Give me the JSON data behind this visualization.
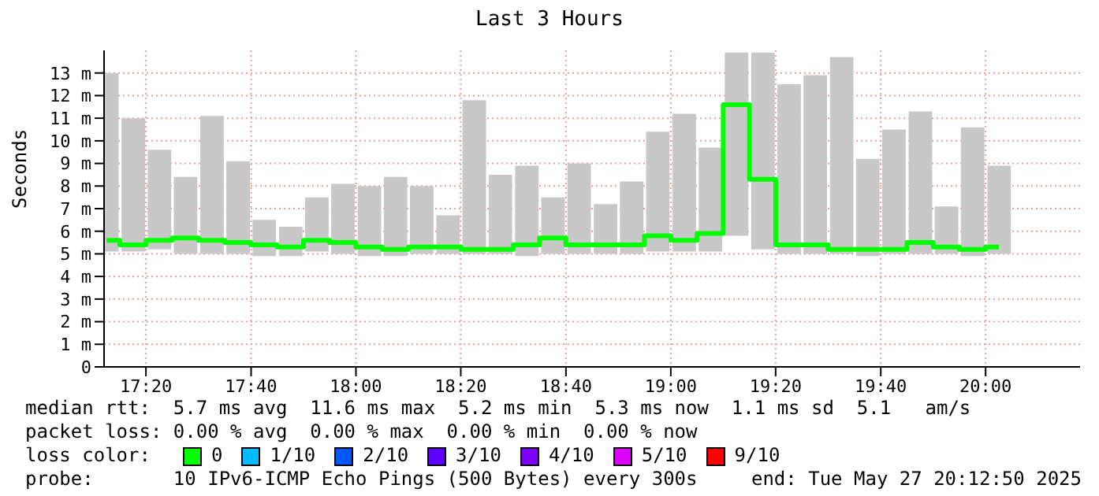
{
  "chart_data": {
    "type": "bar",
    "title": "Last 3 Hours",
    "ylabel": "Seconds",
    "x": [
      17.208,
      17.292,
      17.375,
      17.458,
      17.542,
      17.625,
      17.708,
      17.792,
      17.875,
      17.958,
      18.042,
      18.125,
      18.208,
      18.292,
      18.375,
      18.458,
      18.542,
      18.625,
      18.708,
      18.792,
      18.875,
      18.958,
      19.042,
      19.125,
      19.208,
      19.292,
      19.375,
      19.458,
      19.542,
      19.625,
      19.708,
      19.792,
      19.875,
      19.958,
      20.042
    ],
    "series": [
      {
        "color": "#c8c8c8",
        "base": [
          5.1,
          5.1,
          5.2,
          5.0,
          5.0,
          5.0,
          4.9,
          4.9,
          5.1,
          5.0,
          4.9,
          4.9,
          5.0,
          5.0,
          5.0,
          5.0,
          4.9,
          5.0,
          5.0,
          5.0,
          5.0,
          5.1,
          5.1,
          5.1,
          5.8,
          5.2,
          5.0,
          5.0,
          5.0,
          4.9,
          5.0,
          5.0,
          5.0,
          4.9,
          5.0
        ],
        "values": [
          7.9,
          5.9,
          4.4,
          3.4,
          6.1,
          4.1,
          1.6,
          1.3,
          2.4,
          3.1,
          3.1,
          3.5,
          3.0,
          1.7,
          6.8,
          3.5,
          4.0,
          2.5,
          4.0,
          2.2,
          3.2,
          5.3,
          6.1,
          4.6,
          8.1,
          8.7,
          7.5,
          7.9,
          8.7,
          4.3,
          5.5,
          6.3,
          2.1,
          5.7,
          3.9
        ]
      },
      {
        "type": "step",
        "name": "0",
        "color": "#00ff00",
        "values": [
          5.6,
          5.4,
          5.6,
          5.7,
          5.6,
          5.5,
          5.4,
          5.3,
          5.6,
          5.5,
          5.3,
          5.2,
          5.3,
          5.3,
          5.2,
          5.2,
          5.4,
          5.7,
          5.4,
          5.4,
          5.4,
          5.8,
          5.6,
          5.9,
          11.6,
          8.3,
          5.4,
          5.4,
          5.2,
          5.2,
          5.2,
          5.5,
          5.3,
          5.2,
          5.3
        ]
      },
      {
        "type": "step",
        "name": "1/10",
        "color": "#00bbff",
        "values": [
          null,
          null,
          null,
          null,
          null,
          null,
          null,
          null,
          null,
          null,
          null,
          null,
          null,
          null,
          null,
          null,
          null,
          null,
          null,
          null,
          null,
          null,
          null,
          null,
          null,
          null,
          null,
          null,
          null,
          null,
          null,
          null,
          null,
          null,
          null
        ]
      },
      {
        "type": "step",
        "name": "2/10",
        "color": "#0059ff",
        "values": [
          null,
          null,
          null,
          null,
          null,
          null,
          null,
          null,
          null,
          null,
          null,
          null,
          null,
          null,
          null,
          null,
          null,
          null,
          null,
          null,
          null,
          null,
          null,
          null,
          null,
          null,
          null,
          null,
          null,
          null,
          null,
          null,
          null,
          null,
          null
        ]
      },
      {
        "type": "step",
        "name": "3/10",
        "color": "#5e00ff",
        "values": [
          null,
          null,
          null,
          null,
          null,
          null,
          null,
          null,
          null,
          null,
          null,
          null,
          null,
          null,
          null,
          null,
          null,
          null,
          null,
          null,
          null,
          null,
          null,
          null,
          null,
          null,
          null,
          null,
          null,
          null,
          null,
          null,
          null,
          null,
          null
        ]
      },
      {
        "type": "step",
        "name": "4/10",
        "color": "#7e00ff",
        "values": [
          null,
          null,
          null,
          null,
          null,
          null,
          null,
          null,
          null,
          null,
          null,
          null,
          null,
          null,
          null,
          null,
          null,
          null,
          null,
          null,
          null,
          null,
          null,
          null,
          null,
          null,
          null,
          null,
          null,
          null,
          null,
          null,
          null,
          null,
          null
        ]
      },
      {
        "type": "step",
        "name": "5/10",
        "color": "#dd00ff",
        "values": [
          null,
          null,
          null,
          null,
          null,
          null,
          null,
          null,
          null,
          null,
          null,
          null,
          null,
          null,
          null,
          null,
          null,
          null,
          null,
          null,
          null,
          null,
          null,
          null,
          null,
          null,
          null,
          null,
          null,
          null,
          null,
          null,
          null,
          null,
          null
        ]
      },
      {
        "type": "step",
        "name": "9/10",
        "color": "#ff0000",
        "values": [
          null,
          null,
          null,
          null,
          null,
          null,
          null,
          null,
          null,
          null,
          null,
          null,
          null,
          null,
          null,
          null,
          null,
          null,
          null,
          null,
          null,
          null,
          null,
          null,
          null,
          null,
          null,
          null,
          null,
          null,
          null,
          null,
          null,
          null,
          null
        ]
      }
    ],
    "xlim": [
      17.2,
      20.3
    ],
    "xticks": [
      {
        "value": 17.333,
        "label": "17:20"
      },
      {
        "value": 17.667,
        "label": "17:40"
      },
      {
        "value": 18,
        "label": "18:00"
      },
      {
        "value": 18.333,
        "label": "18:20"
      },
      {
        "value": 18.667,
        "label": "18:40"
      },
      {
        "value": 19,
        "label": "19:00"
      },
      {
        "value": 19.333,
        "label": "19:20"
      },
      {
        "value": 19.667,
        "label": "19:40"
      },
      {
        "value": 20,
        "label": "20:00"
      }
    ],
    "ylim": [
      0,
      14
    ],
    "yticks": [
      0,
      {
        "value": 1,
        "label": "1 m"
      },
      {
        "value": 2,
        "label": "2 m"
      },
      {
        "value": 3,
        "label": "3 m"
      },
      {
        "value": 4,
        "label": "4 m"
      },
      {
        "value": 5,
        "label": "5 m"
      },
      {
        "value": 6,
        "label": "6 m"
      },
      {
        "value": 7,
        "label": "7 m"
      },
      {
        "value": 8,
        "label": "8 m"
      },
      {
        "value": 9,
        "label": "9 m"
      },
      {
        "value": 10,
        "label": "10 m"
      },
      {
        "value": 11,
        "label": "11 m"
      },
      {
        "value": 12,
        "label": "12 m"
      },
      {
        "value": 13,
        "label": "13 m"
      }
    ],
    "grid": true,
    "legend": "bottom left",
    "legend_title": "loss color:",
    "annotations": [
      "median rtt:  5.7 ms avg  11.6 ms max  5.2 ms min  5.3 ms now  1.1 ms sd  5.1   am/s",
      "packet loss: 0.00 % avg  0.00 % max  0.00 % min  0.00 % now",
      "probe:       10 IPv6-ICMP Echo Pings (500 Bytes) every 300s",
      "end: Tue May 27 20:12:50 2025"
    ]
  }
}
